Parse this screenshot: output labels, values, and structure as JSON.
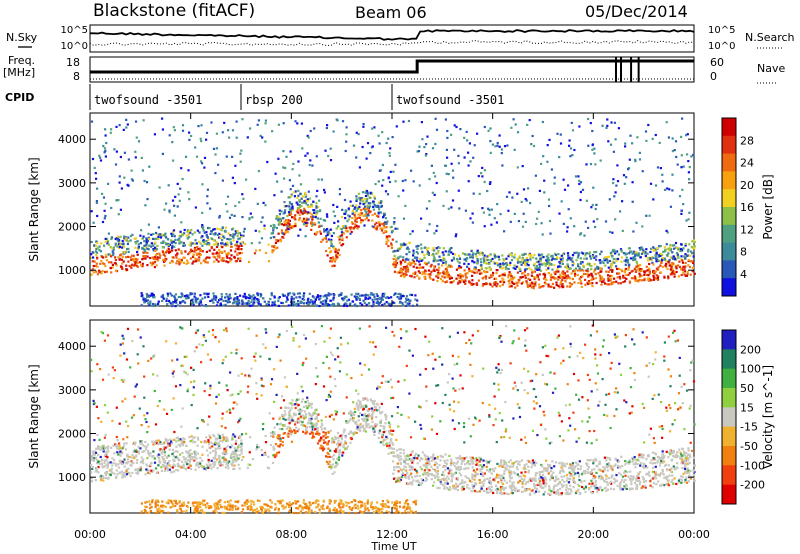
{
  "header": {
    "station": "Blackstone (fitACF)",
    "beam": "Beam 06",
    "date": "05/Dec/2014"
  },
  "left_labels": {
    "nsky": "N.Sky",
    "freq_top": "Freq.",
    "freq_unit": "[MHz]",
    "cpid": "CPID"
  },
  "right_labels": {
    "nsearch": "N.Search",
    "nave": "Nave"
  },
  "noise_axis": {
    "left_top": "10^5",
    "left_bottom": "10^0",
    "right_top": "10^5",
    "right_bottom": "10^0"
  },
  "freq_axis": {
    "left_top": "18",
    "left_bottom": "8",
    "right_top": "60",
    "right_bottom": "0"
  },
  "cpid_segments": [
    {
      "label": "twofsound -3501",
      "start_hour": 0.0,
      "end_hour": 6.0
    },
    {
      "label": "rbsp 200",
      "start_hour": 6.0,
      "end_hour": 12.0
    },
    {
      "label": "twofsound -3501",
      "start_hour": 12.0,
      "end_hour": 24.0
    }
  ],
  "chart_data": [
    {
      "type": "heatmap",
      "title": "",
      "xlabel": "Time UT",
      "ylabel": "Slant Range [km]",
      "x_ticks": [
        "00:00",
        "04:00",
        "08:00",
        "12:00",
        "16:00",
        "20:00",
        "00:00"
      ],
      "x_range_hours": [
        0,
        24
      ],
      "y_ticks": [
        1000,
        2000,
        3000,
        4000
      ],
      "ylim": [
        180,
        4600
      ],
      "colorbar": {
        "label": "Power [dB]",
        "ticks": [
          4,
          8,
          12,
          16,
          20,
          24,
          28
        ],
        "range": [
          0,
          32
        ],
        "colors": [
          "#1010e0",
          "#2a58b8",
          "#3c8a9a",
          "#4fa080",
          "#8cc048",
          "#f0d020",
          "#f7a010",
          "#f06a10",
          "#e03010",
          "#d00000"
        ]
      },
      "features": [
        {
          "name": "main band",
          "start_hour": 0.0,
          "end_hour": 24.0,
          "range_km": [
            1000,
            1800
          ]
        },
        {
          "name": "near-range echoes",
          "start_hour": 2.0,
          "end_hour": 13.0,
          "range_km": [
            200,
            500
          ]
        }
      ]
    },
    {
      "type": "heatmap",
      "title": "",
      "xlabel": "Time UT",
      "ylabel": "Slant Range [km]",
      "x_ticks": [
        "00:00",
        "04:00",
        "08:00",
        "12:00",
        "16:00",
        "20:00",
        "00:00"
      ],
      "x_range_hours": [
        0,
        24
      ],
      "y_ticks": [
        1000,
        2000,
        3000,
        4000
      ],
      "ylim": [
        180,
        4600
      ],
      "colorbar": {
        "label": "Velocity [m s^-1]",
        "ticks": [
          200,
          100,
          50,
          15,
          -15,
          -50,
          -100,
          -200
        ],
        "range": [
          -250,
          250
        ],
        "colors": [
          "#2020c0",
          "#208060",
          "#40b040",
          "#90d040",
          "#c8c8c0",
          "#f0b030",
          "#f08010",
          "#f04010",
          "#e00000"
        ]
      },
      "features": [
        {
          "name": "ground scatter",
          "start_hour": 0.0,
          "end_hour": 24.0,
          "range_km": [
            1000,
            2000
          ],
          "color": "grey"
        },
        {
          "name": "negative velocity patch",
          "start_hour": 7.3,
          "end_hour": 9.5,
          "range_km": [
            900,
            2100
          ],
          "color": "orange"
        }
      ]
    }
  ]
}
